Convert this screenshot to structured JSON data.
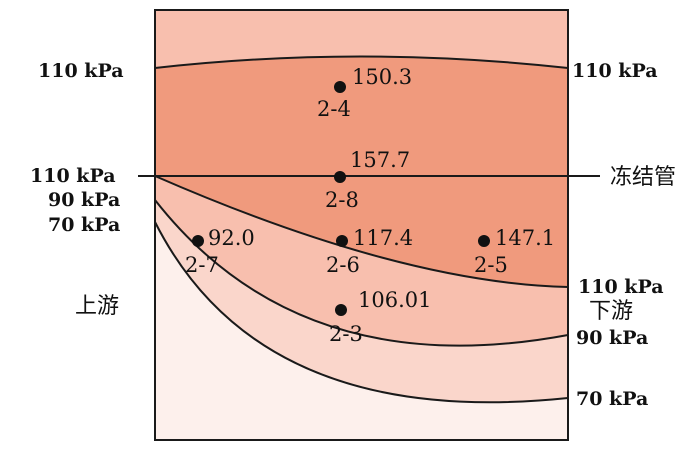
{
  "colors": {
    "band_outer": "#f8bfae",
    "band_110": "#f09a7d",
    "band_90": "#f8bfae",
    "band_70": "#fad6cb",
    "band_bottom": "#fdf0ec",
    "line": "#1a1a1a"
  },
  "left_labels": {
    "top_110": "110 kPa",
    "mid_110": "110 kPa",
    "mid_90": "90 kPa",
    "mid_70": "70 kPa",
    "upstream": "上游"
  },
  "right_labels": {
    "top_110": "110 kPa",
    "pipe": "冻结管",
    "low_110": "110 kPa",
    "downstream": "下游",
    "low_90": "90 kPa",
    "low_70": "70 kPa"
  },
  "points": [
    {
      "id": "2-4",
      "value": "150.3"
    },
    {
      "id": "2-8",
      "value": "157.7"
    },
    {
      "id": "2-7",
      "value": "92.0"
    },
    {
      "id": "2-6",
      "value": "117.4"
    },
    {
      "id": "2-5",
      "value": "147.1"
    },
    {
      "id": "2-3",
      "value": "106.01"
    }
  ]
}
